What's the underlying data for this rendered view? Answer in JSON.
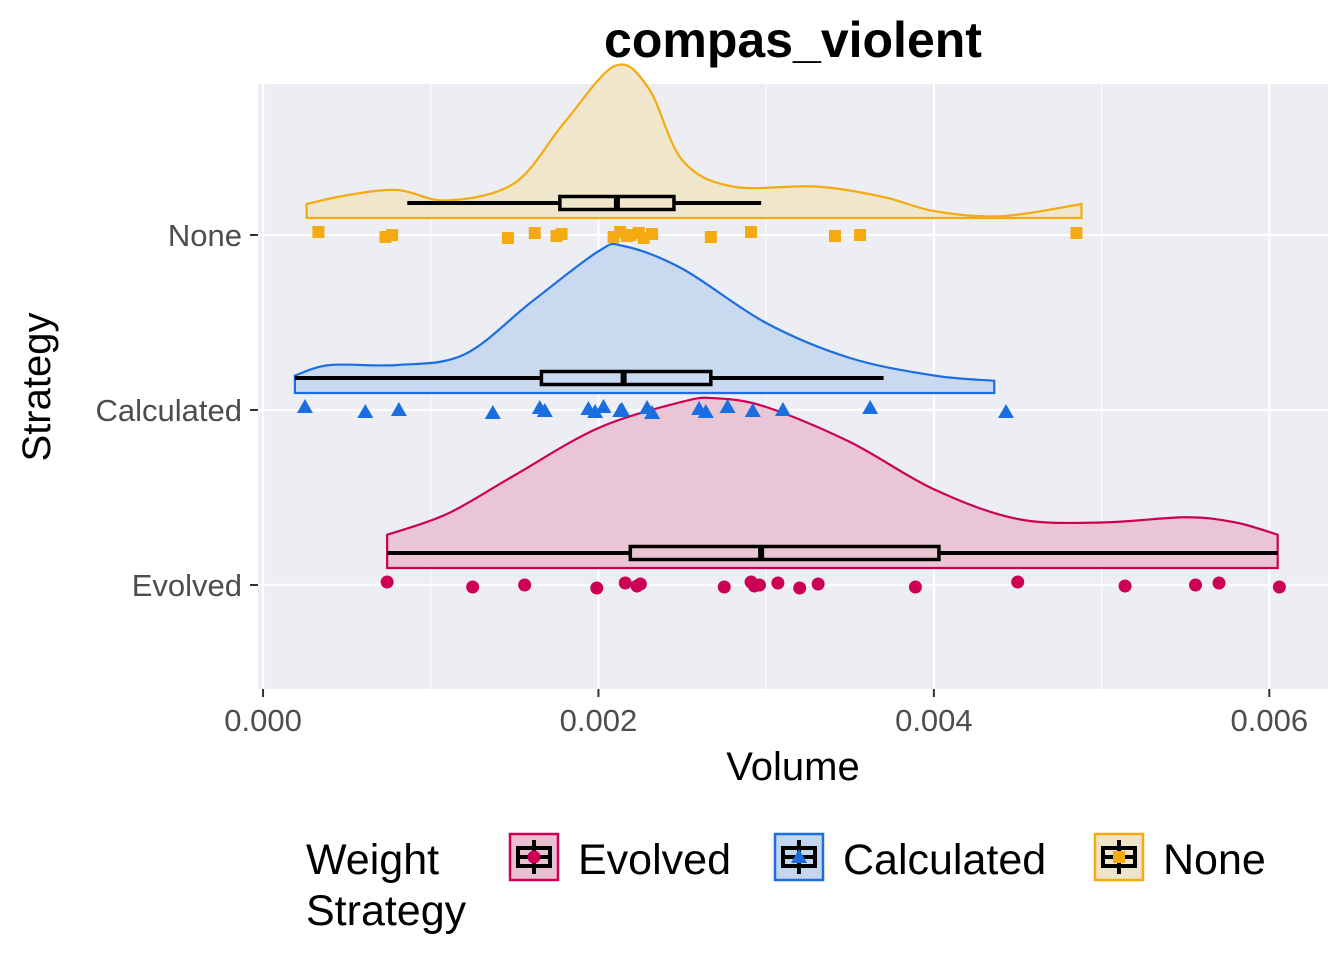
{
  "chart_data": {
    "type": "raincloud",
    "title": "compas_violent",
    "xlabel": "Volume",
    "ylabel": "Strategy",
    "xlim": [
      -3e-05,
      0.00635
    ],
    "x_ticks": [
      0.0,
      0.002,
      0.004,
      0.006
    ],
    "x_tick_labels": [
      "0.000",
      "0.002",
      "0.004",
      "0.006"
    ],
    "categories": [
      "Evolved",
      "Calculated",
      "None"
    ],
    "grid": true,
    "legend": {
      "title_lines": [
        "Weight",
        "Strategy"
      ],
      "position": "bottom",
      "entries": [
        "Evolved",
        "Calculated",
        "None"
      ]
    },
    "series": [
      {
        "name": "Evolved",
        "color": "#cc0055",
        "fill": "#e8c0d2",
        "marker": "circle",
        "box": {
          "min": 0.00074,
          "q1": 0.00219,
          "median": 0.00297,
          "q3": 0.00403,
          "max": 0.00605
        },
        "density": [
          [
            0.00074,
            0.19
          ],
          [
            0.0011,
            0.31
          ],
          [
            0.0015,
            0.53
          ],
          [
            0.002,
            0.8
          ],
          [
            0.0025,
            0.95
          ],
          [
            0.0027,
            0.97
          ],
          [
            0.003,
            0.92
          ],
          [
            0.0035,
            0.72
          ],
          [
            0.004,
            0.45
          ],
          [
            0.0045,
            0.28
          ],
          [
            0.005,
            0.26
          ],
          [
            0.0055,
            0.29
          ],
          [
            0.0058,
            0.26
          ],
          [
            0.00605,
            0.19
          ]
        ],
        "points": [
          0.00074,
          0.00125,
          0.00156,
          0.00199,
          0.00216,
          0.00223,
          0.00225,
          0.00275,
          0.00291,
          0.00293,
          0.00296,
          0.00307,
          0.0032,
          0.00331,
          0.00389,
          0.0045,
          0.00514,
          0.00556,
          0.0057,
          0.00606
        ]
      },
      {
        "name": "Calculated",
        "color": "#1a6ee0",
        "fill": "#c4d6ef",
        "marker": "triangle",
        "box": {
          "min": 0.00019,
          "q1": 0.00166,
          "median": 0.00215,
          "q3": 0.00267,
          "max": 0.0037
        },
        "density": [
          [
            0.00019,
            0.1
          ],
          [
            0.0004,
            0.16
          ],
          [
            0.0008,
            0.16
          ],
          [
            0.0012,
            0.22
          ],
          [
            0.0016,
            0.52
          ],
          [
            0.002,
            0.81
          ],
          [
            0.00215,
            0.84
          ],
          [
            0.0025,
            0.71
          ],
          [
            0.003,
            0.4
          ],
          [
            0.0035,
            0.2
          ],
          [
            0.004,
            0.1
          ],
          [
            0.00436,
            0.07
          ]
        ],
        "points": [
          0.00025,
          0.00061,
          0.00081,
          0.00137,
          0.00165,
          0.00168,
          0.00194,
          0.00198,
          0.00203,
          0.00213,
          0.00214,
          0.00229,
          0.00232,
          0.0026,
          0.00264,
          0.00277,
          0.00292,
          0.0031,
          0.00362,
          0.00443
        ]
      },
      {
        "name": "None",
        "color": "#f5aa10",
        "fill": "#f0e4c8",
        "marker": "square",
        "box": {
          "min": 0.00086,
          "q1": 0.00177,
          "median": 0.00211,
          "q3": 0.00245,
          "max": 0.00297
        },
        "density": [
          [
            0.00026,
            0.08
          ],
          [
            0.0005,
            0.13
          ],
          [
            0.0008,
            0.16
          ],
          [
            0.0011,
            0.1
          ],
          [
            0.0015,
            0.2
          ],
          [
            0.0018,
            0.55
          ],
          [
            0.0021,
            0.87
          ],
          [
            0.0023,
            0.74
          ],
          [
            0.0025,
            0.33
          ],
          [
            0.0028,
            0.18
          ],
          [
            0.0033,
            0.18
          ],
          [
            0.0037,
            0.12
          ],
          [
            0.004,
            0.04
          ],
          [
            0.0044,
            0.01
          ],
          [
            0.00488,
            0.08
          ]
        ],
        "points": [
          0.00033,
          0.00073,
          0.00077,
          0.00146,
          0.00162,
          0.00175,
          0.00178,
          0.00209,
          0.00213,
          0.00217,
          0.00219,
          0.00224,
          0.00227,
          0.00232,
          0.00267,
          0.00291,
          0.00341,
          0.00356,
          0.00485
        ]
      }
    ]
  }
}
